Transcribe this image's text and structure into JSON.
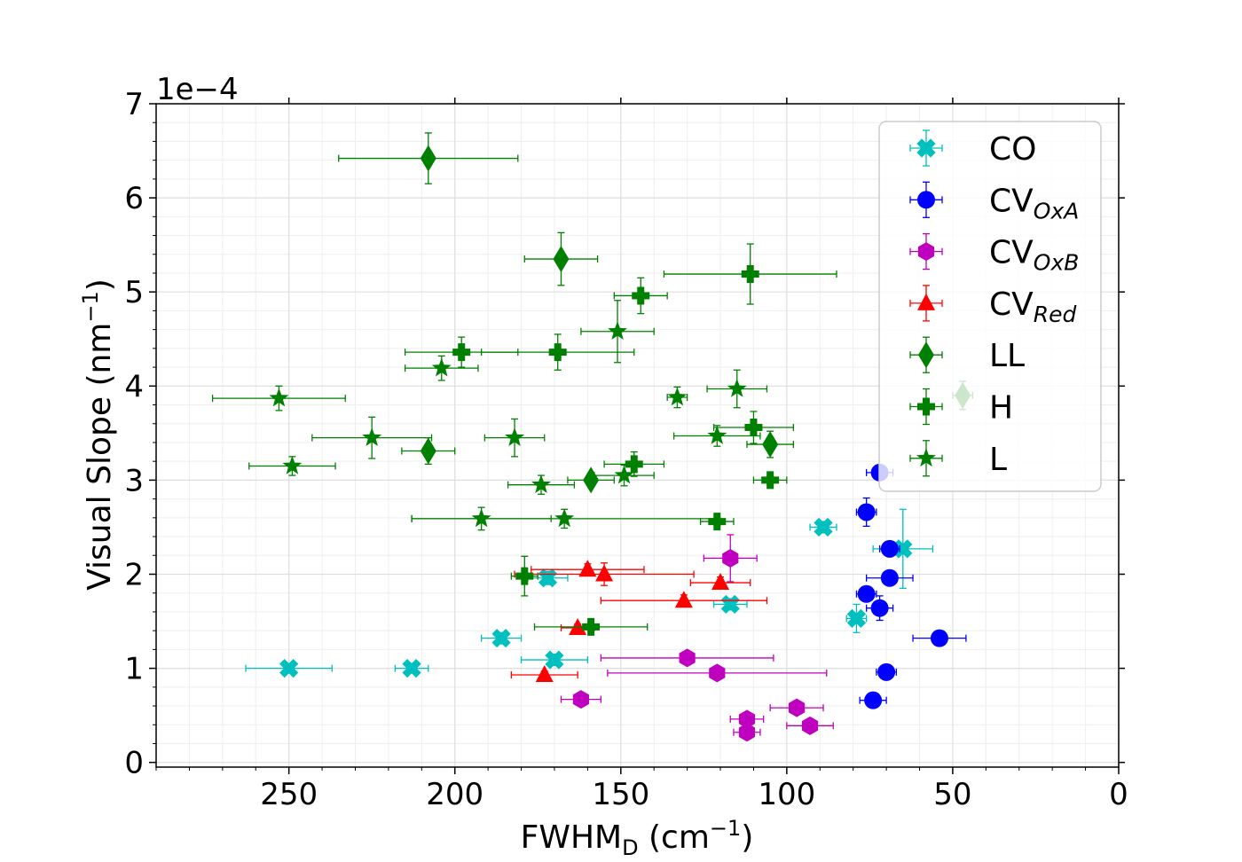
{
  "chart_data": {
    "type": "scatter",
    "xlabel": "FWHM_D (cm⁻¹)",
    "xlabel_main": "FWHM",
    "xlabel_sub": "D",
    "xlabel_rest": " (cm",
    "xlabel_sup": "−1",
    "xlabel_close": ")",
    "ylabel": "Visual Slope (nm⁻¹)",
    "ylabel_main": "Visual Slope (nm",
    "ylabel_sup": "−1",
    "ylabel_close": ")",
    "y_offset_text": "1e−4",
    "xlim": [
      290,
      0
    ],
    "x_inverted": true,
    "ylim": [
      -0.05,
      7.0
    ],
    "y_scale": 0.0001,
    "x_ticks": [
      250,
      200,
      150,
      100,
      50,
      0
    ],
    "x_tick_labels": [
      "250",
      "200",
      "150",
      "100",
      "50",
      "0"
    ],
    "y_ticks": [
      0,
      1,
      2,
      3,
      4,
      5,
      6,
      7
    ],
    "y_tick_labels": [
      "0",
      "1",
      "2",
      "3",
      "4",
      "5",
      "6",
      "7"
    ],
    "grid": true,
    "legend_position": "upper right",
    "series": [
      {
        "name": "CO",
        "name_main": "CO",
        "name_sub": "",
        "color": "#00bfbf",
        "marker": "x-filled",
        "points": [
          {
            "x": 250,
            "y": 1.0,
            "xerr": 13,
            "yerr": 0.05
          },
          {
            "x": 213,
            "y": 1.0,
            "xerr": 5,
            "yerr": 0.05
          },
          {
            "x": 186,
            "y": 1.32,
            "xerr": 6,
            "yerr": 0.06
          },
          {
            "x": 170,
            "y": 1.09,
            "xerr": 10,
            "yerr": 0.06
          },
          {
            "x": 172,
            "y": 1.96,
            "xerr": 6,
            "yerr": 0.07
          },
          {
            "x": 117,
            "y": 1.68,
            "xerr": 5,
            "yerr": 0.06
          },
          {
            "x": 89,
            "y": 2.5,
            "xerr": 4,
            "yerr": 0.06
          },
          {
            "x": 79,
            "y": 1.53,
            "xerr": 3,
            "yerr": 0.15
          },
          {
            "x": 65,
            "y": 2.27,
            "xerr": 9,
            "yerr": 0.42
          }
        ]
      },
      {
        "name": "CV_OxA",
        "name_main": "CV",
        "name_sub": "OxA",
        "color": "#0000ff",
        "marker": "circle",
        "points": [
          {
            "x": 72,
            "y": 3.08,
            "xerr": 4,
            "yerr": 0.04
          },
          {
            "x": 76,
            "y": 2.66,
            "xerr": 3,
            "yerr": 0.15
          },
          {
            "x": 69,
            "y": 2.27,
            "xerr": 3,
            "yerr": 0.06
          },
          {
            "x": 69,
            "y": 1.96,
            "xerr": 7,
            "yerr": 0.06
          },
          {
            "x": 76,
            "y": 1.79,
            "xerr": 3,
            "yerr": 0.06
          },
          {
            "x": 72,
            "y": 1.64,
            "xerr": 4,
            "yerr": 0.13
          },
          {
            "x": 54,
            "y": 1.32,
            "xerr": 8,
            "yerr": 0.05
          },
          {
            "x": 70,
            "y": 0.96,
            "xerr": 3,
            "yerr": 0.05
          },
          {
            "x": 74,
            "y": 0.66,
            "xerr": 4,
            "yerr": 0.05
          }
        ]
      },
      {
        "name": "CV_OxB",
        "name_main": "CV",
        "name_sub": "OxB",
        "color": "#bf00bf",
        "marker": "hexagon",
        "points": [
          {
            "x": 117,
            "y": 2.17,
            "xerr": 8,
            "yerr": 0.25
          },
          {
            "x": 130,
            "y": 1.11,
            "xerr": 26,
            "yerr": 0.04
          },
          {
            "x": 121,
            "y": 0.95,
            "xerr": 33,
            "yerr": 0.04
          },
          {
            "x": 162,
            "y": 0.67,
            "xerr": 6,
            "yerr": 0.05
          },
          {
            "x": 112,
            "y": 0.46,
            "xerr": 5,
            "yerr": 0.05
          },
          {
            "x": 112,
            "y": 0.32,
            "xerr": 4,
            "yerr": 0.04
          },
          {
            "x": 97,
            "y": 0.58,
            "xerr": 8,
            "yerr": 0.04
          },
          {
            "x": 93,
            "y": 0.39,
            "xerr": 7,
            "yerr": 0.04
          }
        ]
      },
      {
        "name": "CV_Red",
        "name_main": "CV",
        "name_sub": "Red",
        "color": "#ff0000",
        "marker": "triangle",
        "points": [
          {
            "x": 160,
            "y": 2.05,
            "xerr": 17,
            "yerr": 0.06
          },
          {
            "x": 155,
            "y": 2.0,
            "xerr": 27,
            "yerr": 0.12
          },
          {
            "x": 120,
            "y": 1.91,
            "xerr": 9,
            "yerr": 0.06
          },
          {
            "x": 131,
            "y": 1.72,
            "xerr": 25,
            "yerr": 0.06
          },
          {
            "x": 163,
            "y": 1.43,
            "xerr": 5,
            "yerr": 0.04
          },
          {
            "x": 173,
            "y": 0.93,
            "xerr": 10,
            "yerr": 0.04
          }
        ]
      },
      {
        "name": "LL",
        "name_main": "LL",
        "name_sub": "",
        "color": "#008000",
        "marker": "diamond",
        "points": [
          {
            "x": 208,
            "y": 6.42,
            "xerr": 27,
            "yerr": 0.27
          },
          {
            "x": 168,
            "y": 5.35,
            "xerr": 11,
            "yerr": 0.28
          },
          {
            "x": 208,
            "y": 3.31,
            "xerr": 8,
            "yerr": 0.14
          },
          {
            "x": 159,
            "y": 3.0,
            "xerr": 7,
            "yerr": 0.04
          },
          {
            "x": 105,
            "y": 3.38,
            "xerr": 7,
            "yerr": 0.14
          },
          {
            "x": 47,
            "y": 3.9,
            "xerr": 3,
            "yerr": 0.15
          }
        ]
      },
      {
        "name": "H",
        "name_main": "H",
        "name_sub": "",
        "color": "#008000",
        "marker": "plus-filled",
        "points": [
          {
            "x": 111,
            "y": 5.19,
            "xerr": 26,
            "yerr": 0.32
          },
          {
            "x": 144,
            "y": 4.96,
            "xerr": 8,
            "yerr": 0.19
          },
          {
            "x": 198,
            "y": 4.36,
            "xerr": 17,
            "yerr": 0.16
          },
          {
            "x": 169,
            "y": 4.36,
            "xerr": 23,
            "yerr": 0.19
          },
          {
            "x": 110,
            "y": 3.56,
            "xerr": 12,
            "yerr": 0.17
          },
          {
            "x": 146,
            "y": 3.17,
            "xerr": 9,
            "yerr": 0.13
          },
          {
            "x": 105,
            "y": 3.0,
            "xerr": 5,
            "yerr": 0.04
          },
          {
            "x": 121,
            "y": 2.56,
            "xerr": 5,
            "yerr": 0.04
          },
          {
            "x": 179,
            "y": 1.98,
            "xerr": 4,
            "yerr": 0.21
          },
          {
            "x": 159,
            "y": 1.44,
            "xerr": 17,
            "yerr": 0.04
          }
        ]
      },
      {
        "name": "L",
        "name_main": "L",
        "name_sub": "",
        "color": "#008000",
        "marker": "star",
        "points": [
          {
            "x": 151,
            "y": 4.58,
            "xerr": 11,
            "yerr": 0.33
          },
          {
            "x": 204,
            "y": 4.19,
            "xerr": 11,
            "yerr": 0.13
          },
          {
            "x": 253,
            "y": 3.87,
            "xerr": 20,
            "yerr": 0.13
          },
          {
            "x": 133,
            "y": 3.88,
            "xerr": 3,
            "yerr": 0.11
          },
          {
            "x": 115,
            "y": 3.97,
            "xerr": 9,
            "yerr": 0.2
          },
          {
            "x": 225,
            "y": 3.45,
            "xerr": 18,
            "yerr": 0.22
          },
          {
            "x": 182,
            "y": 3.45,
            "xerr": 9,
            "yerr": 0.2
          },
          {
            "x": 121,
            "y": 3.47,
            "xerr": 13,
            "yerr": 0.11
          },
          {
            "x": 249,
            "y": 3.15,
            "xerr": 13,
            "yerr": 0.1
          },
          {
            "x": 149,
            "y": 3.05,
            "xerr": 9,
            "yerr": 0.11
          },
          {
            "x": 174,
            "y": 2.95,
            "xerr": 10,
            "yerr": 0.1
          },
          {
            "x": 192,
            "y": 2.59,
            "xerr": 21,
            "yerr": 0.12
          },
          {
            "x": 167,
            "y": 2.59,
            "xerr": 46,
            "yerr": 0.1
          }
        ]
      }
    ],
    "legend_entries": [
      "CO",
      "CV_OxA",
      "CV_OxB",
      "CV_Red",
      "LL",
      "H",
      "L"
    ]
  }
}
